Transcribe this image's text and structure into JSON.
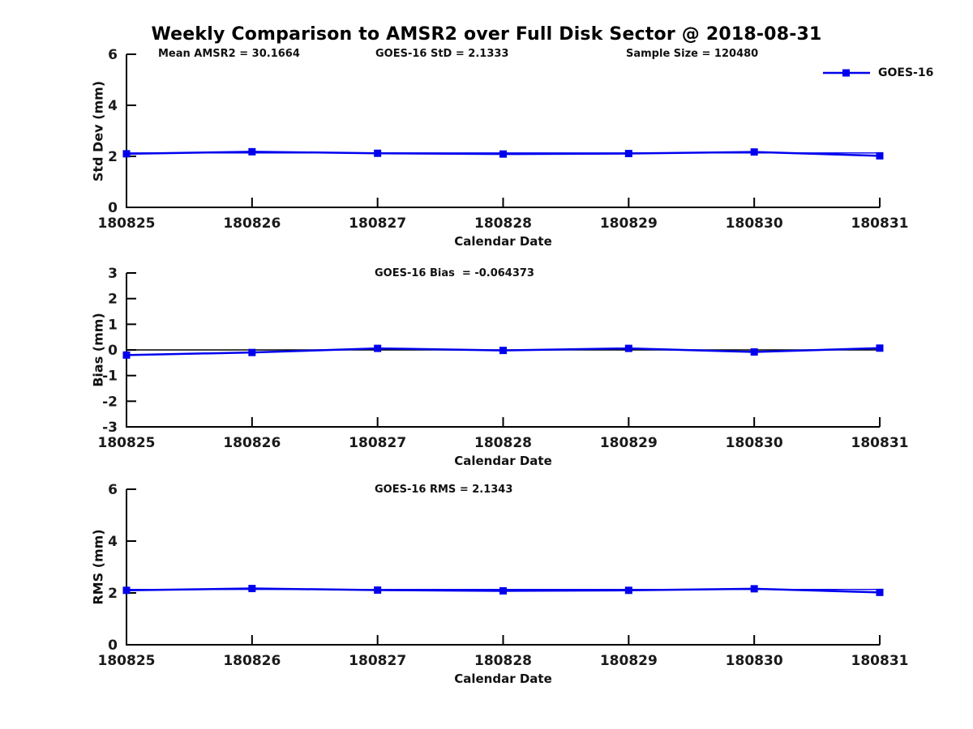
{
  "title": "Weekly Comparison to AMSR2 over Full Disk Sector @ 2018-08-31",
  "annotations": {
    "mean_amsr2": "Mean AMSR2 = 30.1664",
    "goes16_std": "GOES-16 StD = 2.1333",
    "sample_size": "Sample Size = 120480",
    "goes16_bias": "GOES-16 Bias  = -0.064373",
    "goes16_rms": "GOES-16 RMS = 2.1343"
  },
  "legend": {
    "label": "GOES-16",
    "marker": "square",
    "line_color": "#0000ee"
  },
  "colors": {
    "line": "#0000ee",
    "axis": "#000000",
    "tick_text": "#1a1a1a",
    "zero_line": "#000000"
  },
  "chart_data": [
    {
      "type": "line",
      "name": "std-dev",
      "categories": [
        "180825",
        "180826",
        "180827",
        "180828",
        "180829",
        "180830",
        "180831"
      ],
      "series": [
        {
          "name": "GOES-16",
          "values": [
            2.1,
            2.18,
            2.12,
            2.09,
            2.11,
            2.17,
            2.02
          ]
        }
      ],
      "xlabel": "Calendar Date",
      "ylabel": "Std Dev (mm)",
      "ylim": [
        0,
        6
      ],
      "yticks": [
        0,
        2,
        4,
        6
      ],
      "ref_lines": [
        {
          "y": 2.1333,
          "color": "#0000ee"
        }
      ],
      "line_color": "#0000ee",
      "grid": false,
      "legend_position": "top-right"
    },
    {
      "type": "line",
      "name": "bias",
      "categories": [
        "180825",
        "180826",
        "180827",
        "180828",
        "180829",
        "180830",
        "180831"
      ],
      "series": [
        {
          "name": "GOES-16",
          "values": [
            -0.2,
            -0.1,
            0.06,
            -0.02,
            0.06,
            -0.08,
            0.07
          ]
        }
      ],
      "xlabel": "Calendar Date",
      "ylabel": "Bias (mm)",
      "ylim": [
        -3,
        3
      ],
      "yticks": [
        -3,
        -2,
        -1,
        0,
        1,
        2,
        3
      ],
      "ref_lines": [
        {
          "y": 0,
          "color": "#000000"
        }
      ],
      "line_color": "#0000ee",
      "grid": false,
      "legend_position": "none"
    },
    {
      "type": "line",
      "name": "rms",
      "categories": [
        "180825",
        "180826",
        "180827",
        "180828",
        "180829",
        "180830",
        "180831"
      ],
      "series": [
        {
          "name": "GOES-16",
          "values": [
            2.1,
            2.17,
            2.11,
            2.08,
            2.1,
            2.16,
            2.02
          ]
        }
      ],
      "xlabel": "Calendar Date",
      "ylabel": "RMS (mm)",
      "ylim": [
        0,
        6
      ],
      "yticks": [
        0,
        2,
        4,
        6
      ],
      "ref_lines": [
        {
          "y": 2.1343,
          "color": "#0000ee"
        }
      ],
      "line_color": "#0000ee",
      "grid": false,
      "legend_position": "none"
    }
  ]
}
